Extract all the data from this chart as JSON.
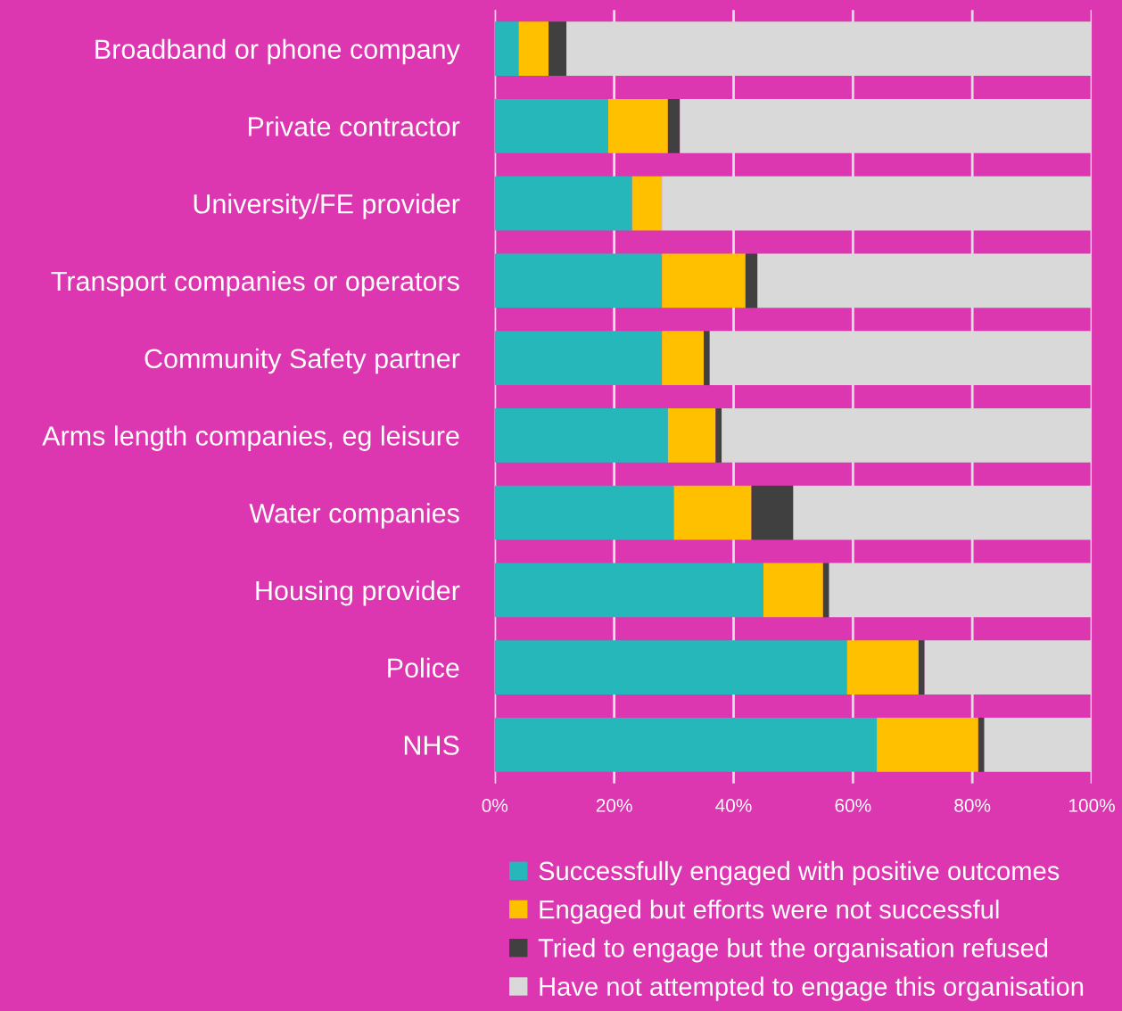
{
  "chart_data": {
    "type": "bar",
    "orientation": "horizontal",
    "stacked": true,
    "categories": [
      "Broadband or phone company",
      "Private contractor",
      "University/FE provider",
      "Transport companies or operators",
      "Community Safety partner",
      "Arms length companies, eg leisure",
      "Water companies",
      "Housing provider",
      "Police",
      "NHS"
    ],
    "series": [
      {
        "name": "Successfully engaged with positive outcomes",
        "color": "#26b7bb",
        "values": [
          4,
          19,
          23,
          28,
          28,
          29,
          30,
          45,
          59,
          64
        ]
      },
      {
        "name": "Engaged but efforts were not successful",
        "color": "#ffc000",
        "values": [
          5,
          10,
          5,
          14,
          7,
          8,
          13,
          10,
          12,
          17
        ]
      },
      {
        "name": "Tried to engage but the organisation refused",
        "color": "#404040",
        "values": [
          3,
          2,
          0,
          2,
          1,
          1,
          7,
          1,
          1,
          1
        ]
      },
      {
        "name": "Have not attempted to engage this organisation",
        "color": "#d9d9d9",
        "values": [
          88,
          69,
          72,
          56,
          64,
          62,
          50,
          44,
          28,
          18
        ]
      }
    ],
    "xlim": [
      0,
      100
    ],
    "xticks": [
      {
        "value": 0,
        "label": "0%"
      },
      {
        "value": 20,
        "label": "20%"
      },
      {
        "value": 40,
        "label": "40%"
      },
      {
        "value": 60,
        "label": "60%"
      },
      {
        "value": 80,
        "label": "80%"
      },
      {
        "value": 100,
        "label": "100%"
      }
    ],
    "grid": "x",
    "legend": "bottom"
  }
}
